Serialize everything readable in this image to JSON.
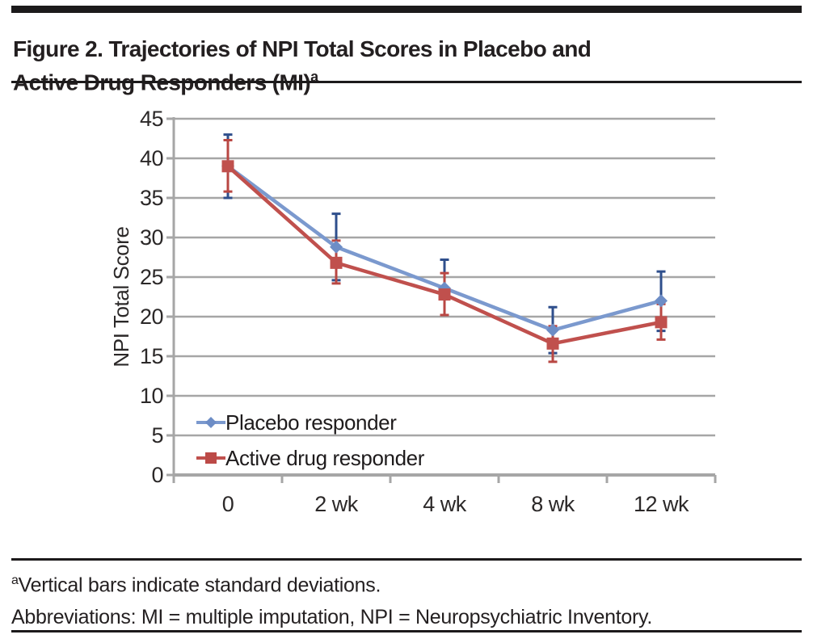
{
  "figure": {
    "title_line1": "Figure 2. Trajectories of NPI Total Scores in Placebo and",
    "title_line2": "Active Drug Responders (MI)",
    "title_superscript": "a"
  },
  "footnote": {
    "superscript": "a",
    "line1": "Vertical bars indicate standard deviations.",
    "line2": "Abbreviations: MI = multiple imputation, NPI = Neuropsychiatric Inventory."
  },
  "chart_data": {
    "type": "line",
    "title": "",
    "xlabel": "",
    "ylabel": "NPI Total Score",
    "categories": [
      "0",
      "2 wk",
      "4 wk",
      "8 wk",
      "12 wk"
    ],
    "ylim": [
      0,
      45
    ],
    "ytick_interval": 5,
    "ytick_labels": [
      "0",
      "5",
      "10",
      "15",
      "20",
      "25",
      "30",
      "35",
      "40",
      "45"
    ],
    "grid": true,
    "legend_position": "inside-bottom-left",
    "error_bars": "standard deviations",
    "series": [
      {
        "name": "Placebo responder",
        "marker": "diamond",
        "color": "#7b99ce",
        "error_color": "#2f4f8c",
        "values": [
          39.0,
          28.8,
          23.6,
          18.3,
          22.0
        ],
        "sd_upper": [
          43.0,
          33.0,
          27.2,
          21.2,
          25.7
        ],
        "sd_lower": [
          35.0,
          24.6,
          20.2,
          15.4,
          18.2
        ]
      },
      {
        "name": "Active drug responder",
        "marker": "square",
        "color": "#c0504d",
        "error_color": "#b94743",
        "values": [
          39.0,
          26.8,
          22.8,
          16.6,
          19.3
        ],
        "sd_upper": [
          42.3,
          29.6,
          25.5,
          18.8,
          21.6
        ],
        "sd_lower": [
          35.8,
          24.2,
          20.2,
          14.3,
          17.1
        ]
      }
    ],
    "colors": {
      "grid": "#a6a6a6",
      "axis": "#a6a6a6",
      "tick_text": "#2b2828"
    }
  }
}
